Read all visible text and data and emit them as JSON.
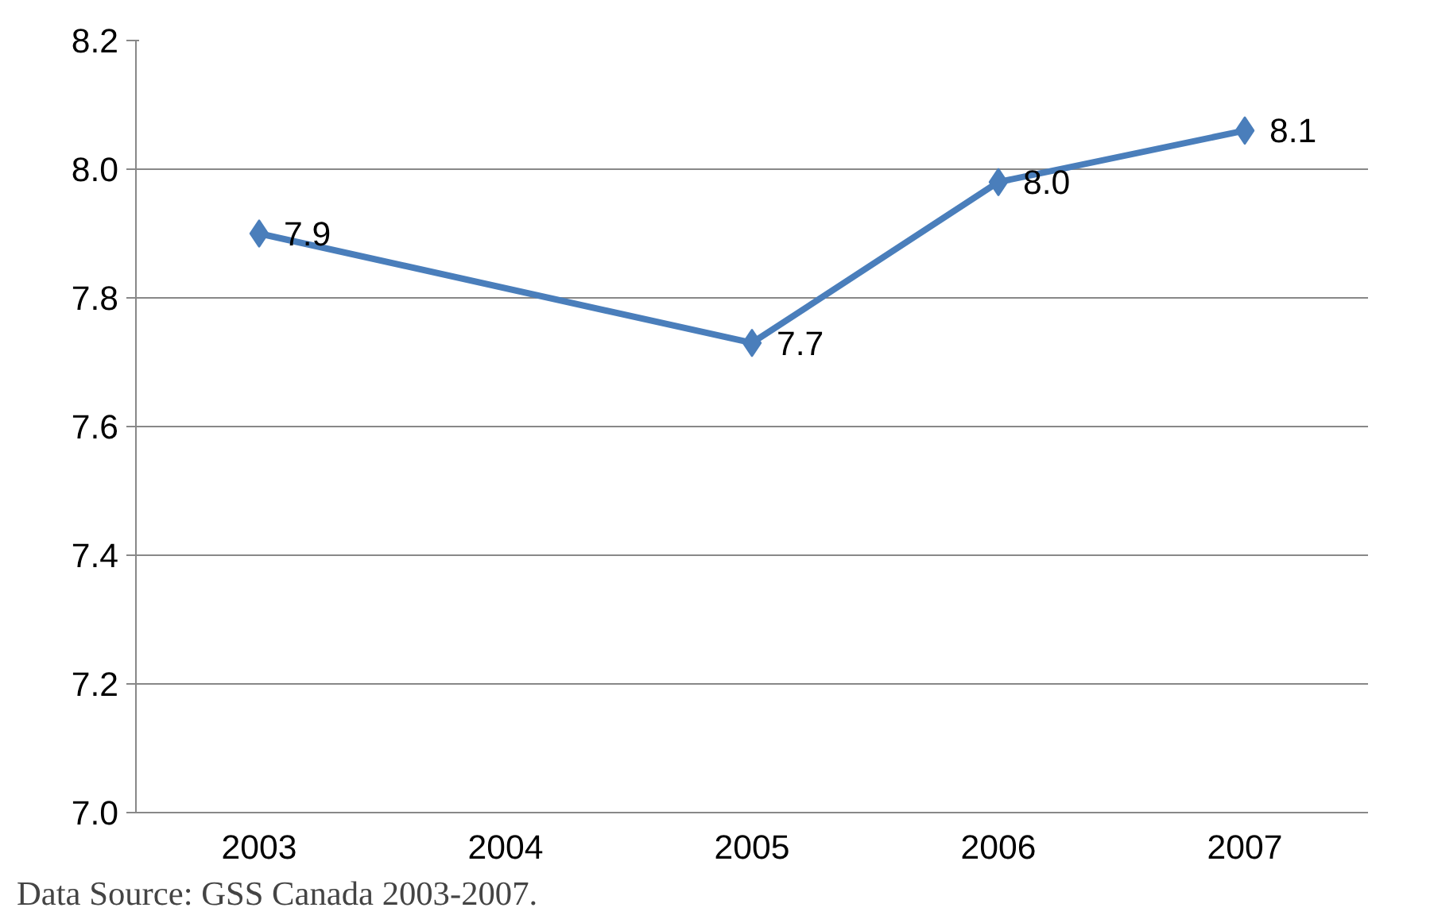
{
  "chart_data": {
    "type": "line",
    "categories": [
      "2003",
      "2004",
      "2005",
      "2006",
      "2007"
    ],
    "series": [
      {
        "color": "#4a7ebb",
        "values": [
          7.9,
          null,
          7.73,
          7.98,
          8.06
        ],
        "value_labels": [
          "7.9",
          null,
          "7.7",
          "8.0",
          "8.1"
        ]
      }
    ],
    "ylim": [
      7.0,
      8.2
    ],
    "yticks": [
      "7.0",
      "7.2",
      "7.4",
      "7.6",
      "7.8",
      "8.0",
      "8.2"
    ],
    "grid": "y",
    "marker": "diamond",
    "line_style": "solid",
    "annotations": [
      "Data Source: GSS Canada 2003-2007."
    ]
  }
}
